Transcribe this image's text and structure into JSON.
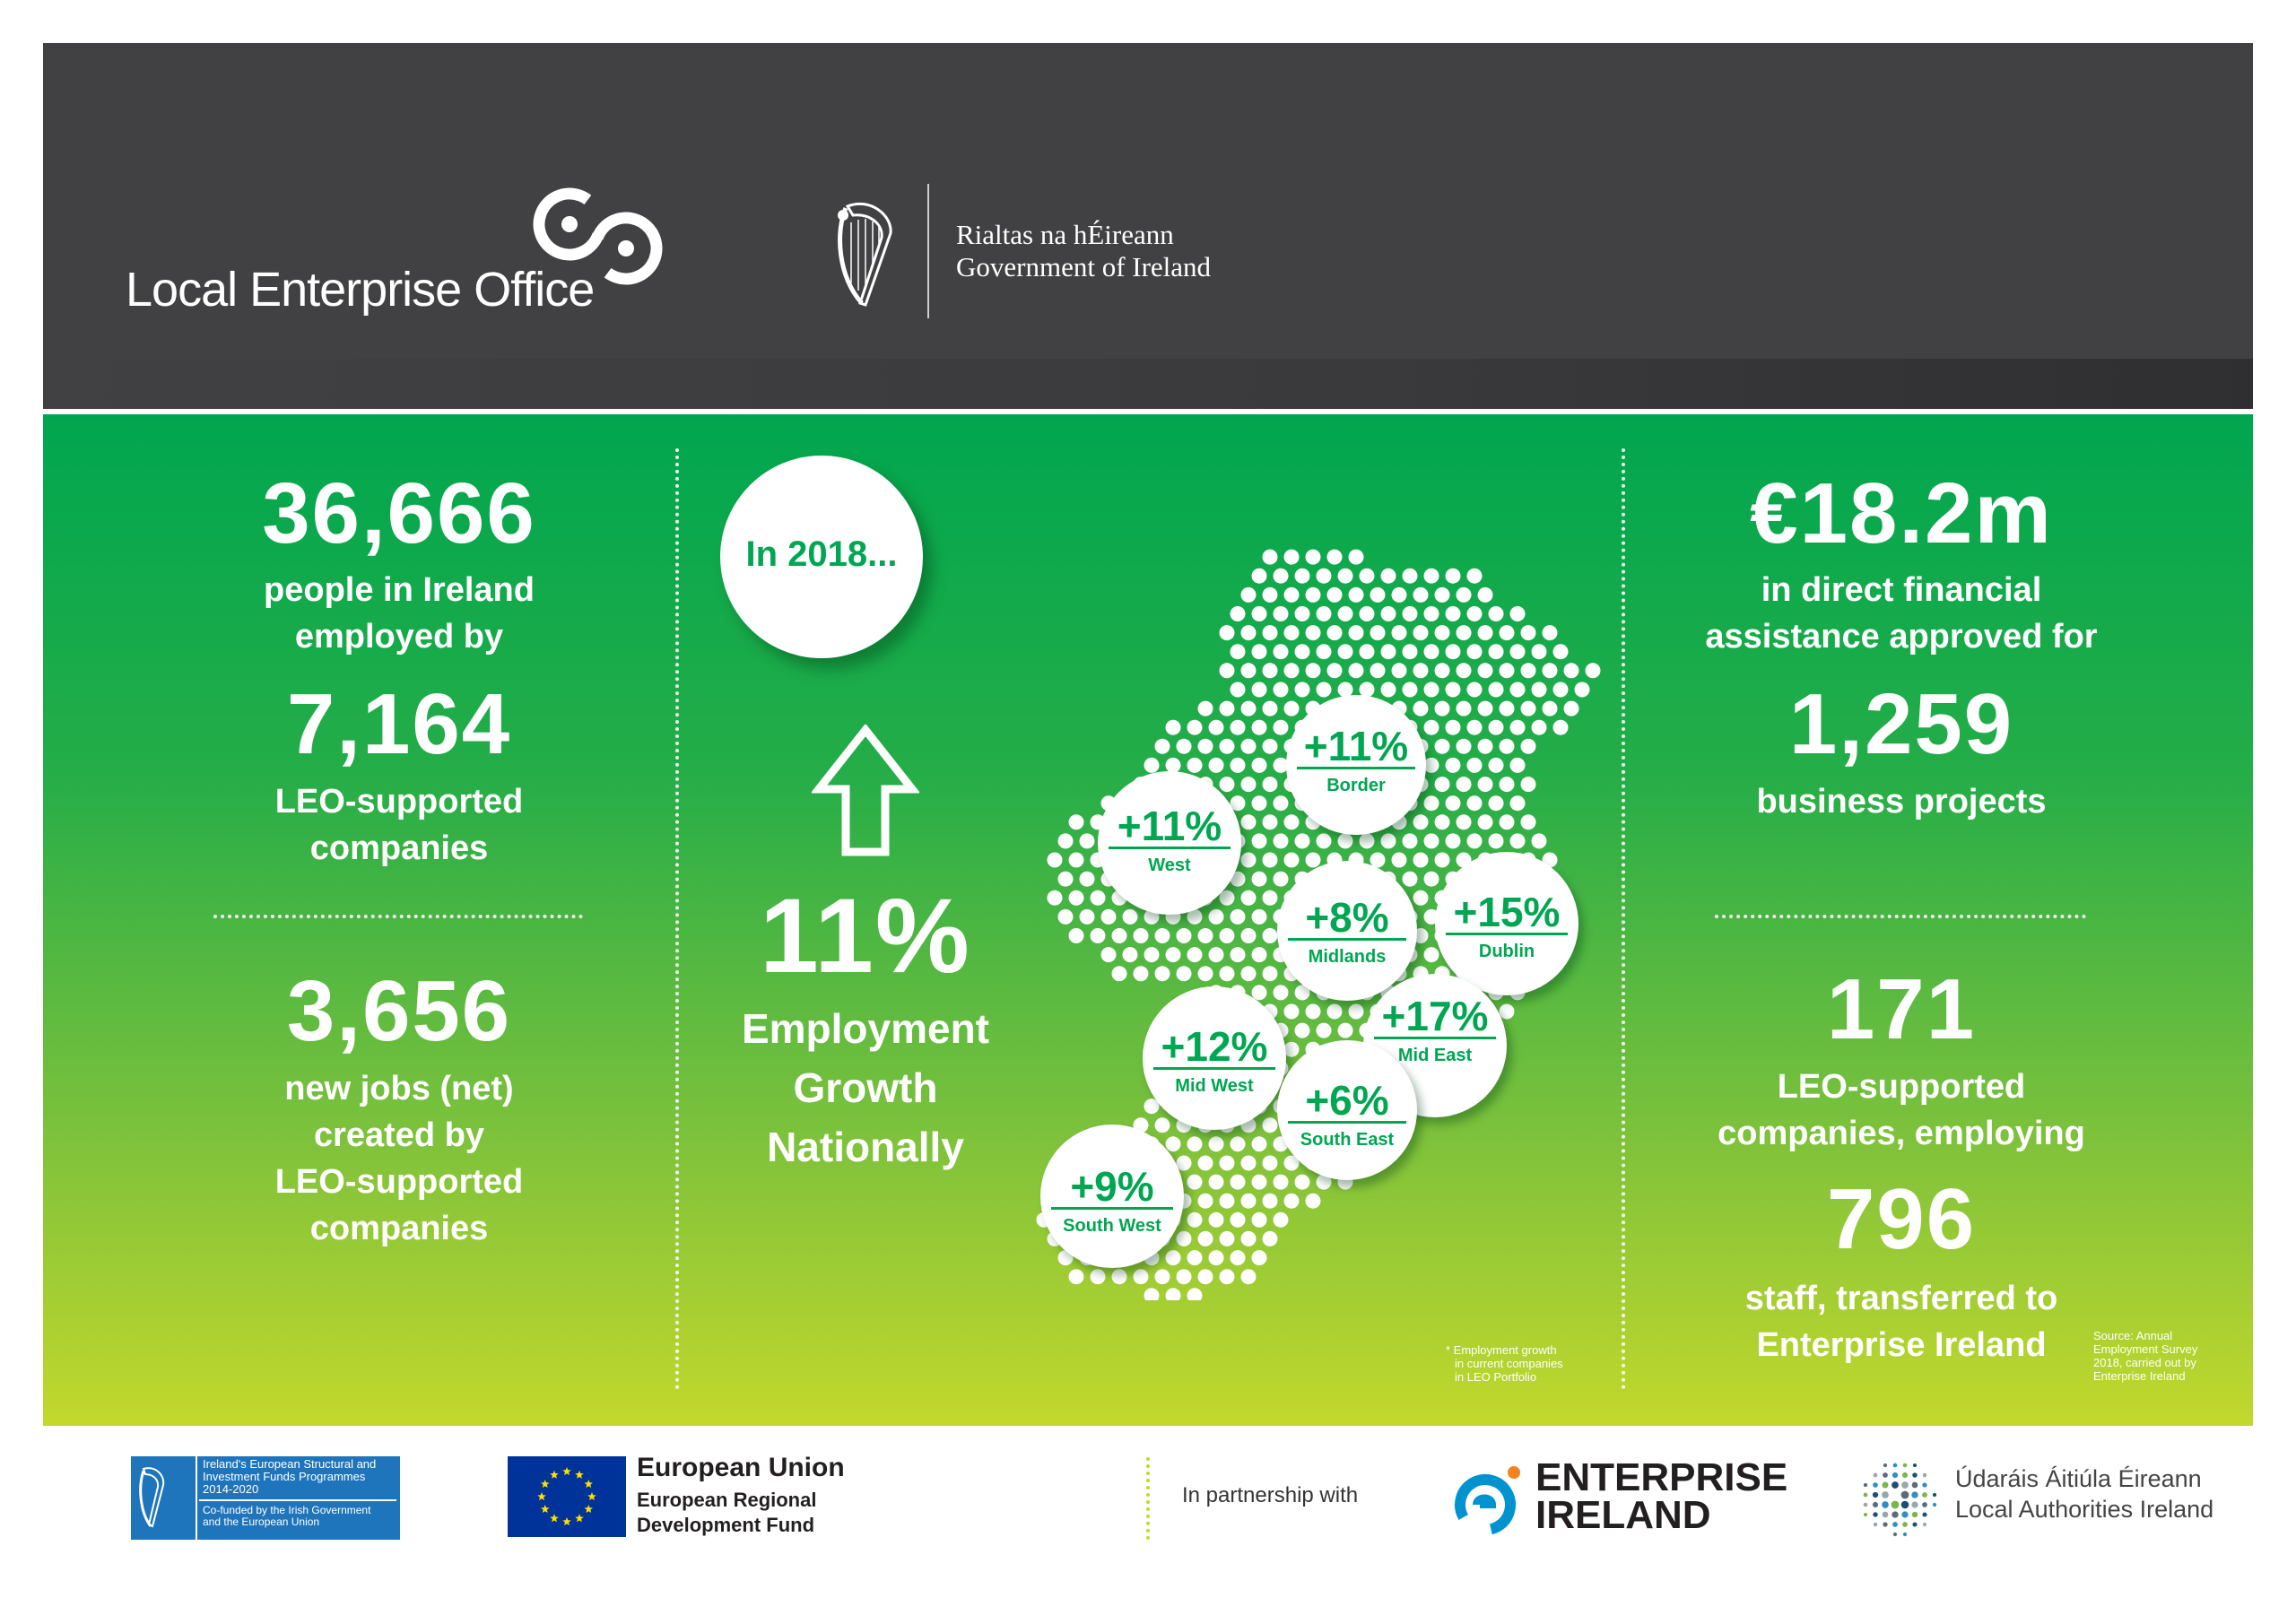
{
  "header": {
    "leo_name": "Local Enterprise Office",
    "gov_name_irish": "Rialtas na hÉireann",
    "gov_name_english": "Government of Ireland"
  },
  "left": {
    "stat1_value": "36,666",
    "stat1_text_1": "people in Ireland",
    "stat1_text_2": "employed by",
    "stat2_value": "7,164",
    "stat2_text_1": "LEO-supported",
    "stat2_text_2": "companies",
    "stat3_value": "3,656",
    "stat3_text_1": "new jobs (net)",
    "stat3_text_2": "created by",
    "stat3_text_3": "LEO-supported",
    "stat3_text_4": "companies"
  },
  "center": {
    "year_badge": "In 2018...",
    "growth_value": "11%",
    "growth_text_1": "Employment",
    "growth_text_2": "Growth",
    "growth_text_3": "Nationally",
    "footnote_1": "* Employment growth",
    "footnote_2": "in current companies",
    "footnote_3": "in LEO Portfolio",
    "regions": [
      {
        "name": "Border",
        "growth": "+11%"
      },
      {
        "name": "West",
        "growth": "+11%"
      },
      {
        "name": "Midlands",
        "growth": "+8%"
      },
      {
        "name": "Dublin",
        "growth": "+15%"
      },
      {
        "name": "Mid East",
        "growth": "+17%"
      },
      {
        "name": "Mid West",
        "growth": "+12%"
      },
      {
        "name": "South East",
        "growth": "+6%"
      },
      {
        "name": "South West",
        "growth": "+9%"
      }
    ]
  },
  "right": {
    "stat1_value": "€18.2m",
    "stat1_text_1": "in direct financial",
    "stat1_text_2": "assistance approved for",
    "stat2_value": "1,259",
    "stat2_text_1": "business projects",
    "stat3_value": "171",
    "stat3_text_1": "LEO-supported",
    "stat3_text_2": "companies, employing",
    "stat4_value": "796",
    "stat4_text_1": "staff, transferred to",
    "stat4_text_2": "Enterprise Ireland",
    "source_1": "Source: Annual",
    "source_2": "Employment Survey",
    "source_3": "2018, carried out by",
    "source_4": "Enterprise Ireland"
  },
  "footer": {
    "esif_line1": "Ireland's European Structural and",
    "esif_line2": "Investment Funds Programmes",
    "esif_line3": "2014-2020",
    "esif_line4": "Co-funded by the Irish Government",
    "esif_line5": "and the European Union",
    "eu_title": "European Union",
    "eu_sub1": "European Regional",
    "eu_sub2": "Development Fund",
    "partnership": "In partnership with",
    "ei_line1": "ENTERPRISE",
    "ei_line2": "IRELAND",
    "lai_line1": "Údaráis Áitiúla Éireann",
    "lai_line2": "Local Authorities Ireland"
  },
  "colors": {
    "header_bg": "#414042",
    "green_top": "#00a64f",
    "green_bottom": "#c3d82c",
    "accent_green": "#00a651",
    "ei_blue": "#0093d0",
    "ei_orange": "#f58220",
    "eu_blue": "#003399",
    "eu_star": "#ffdd00"
  }
}
